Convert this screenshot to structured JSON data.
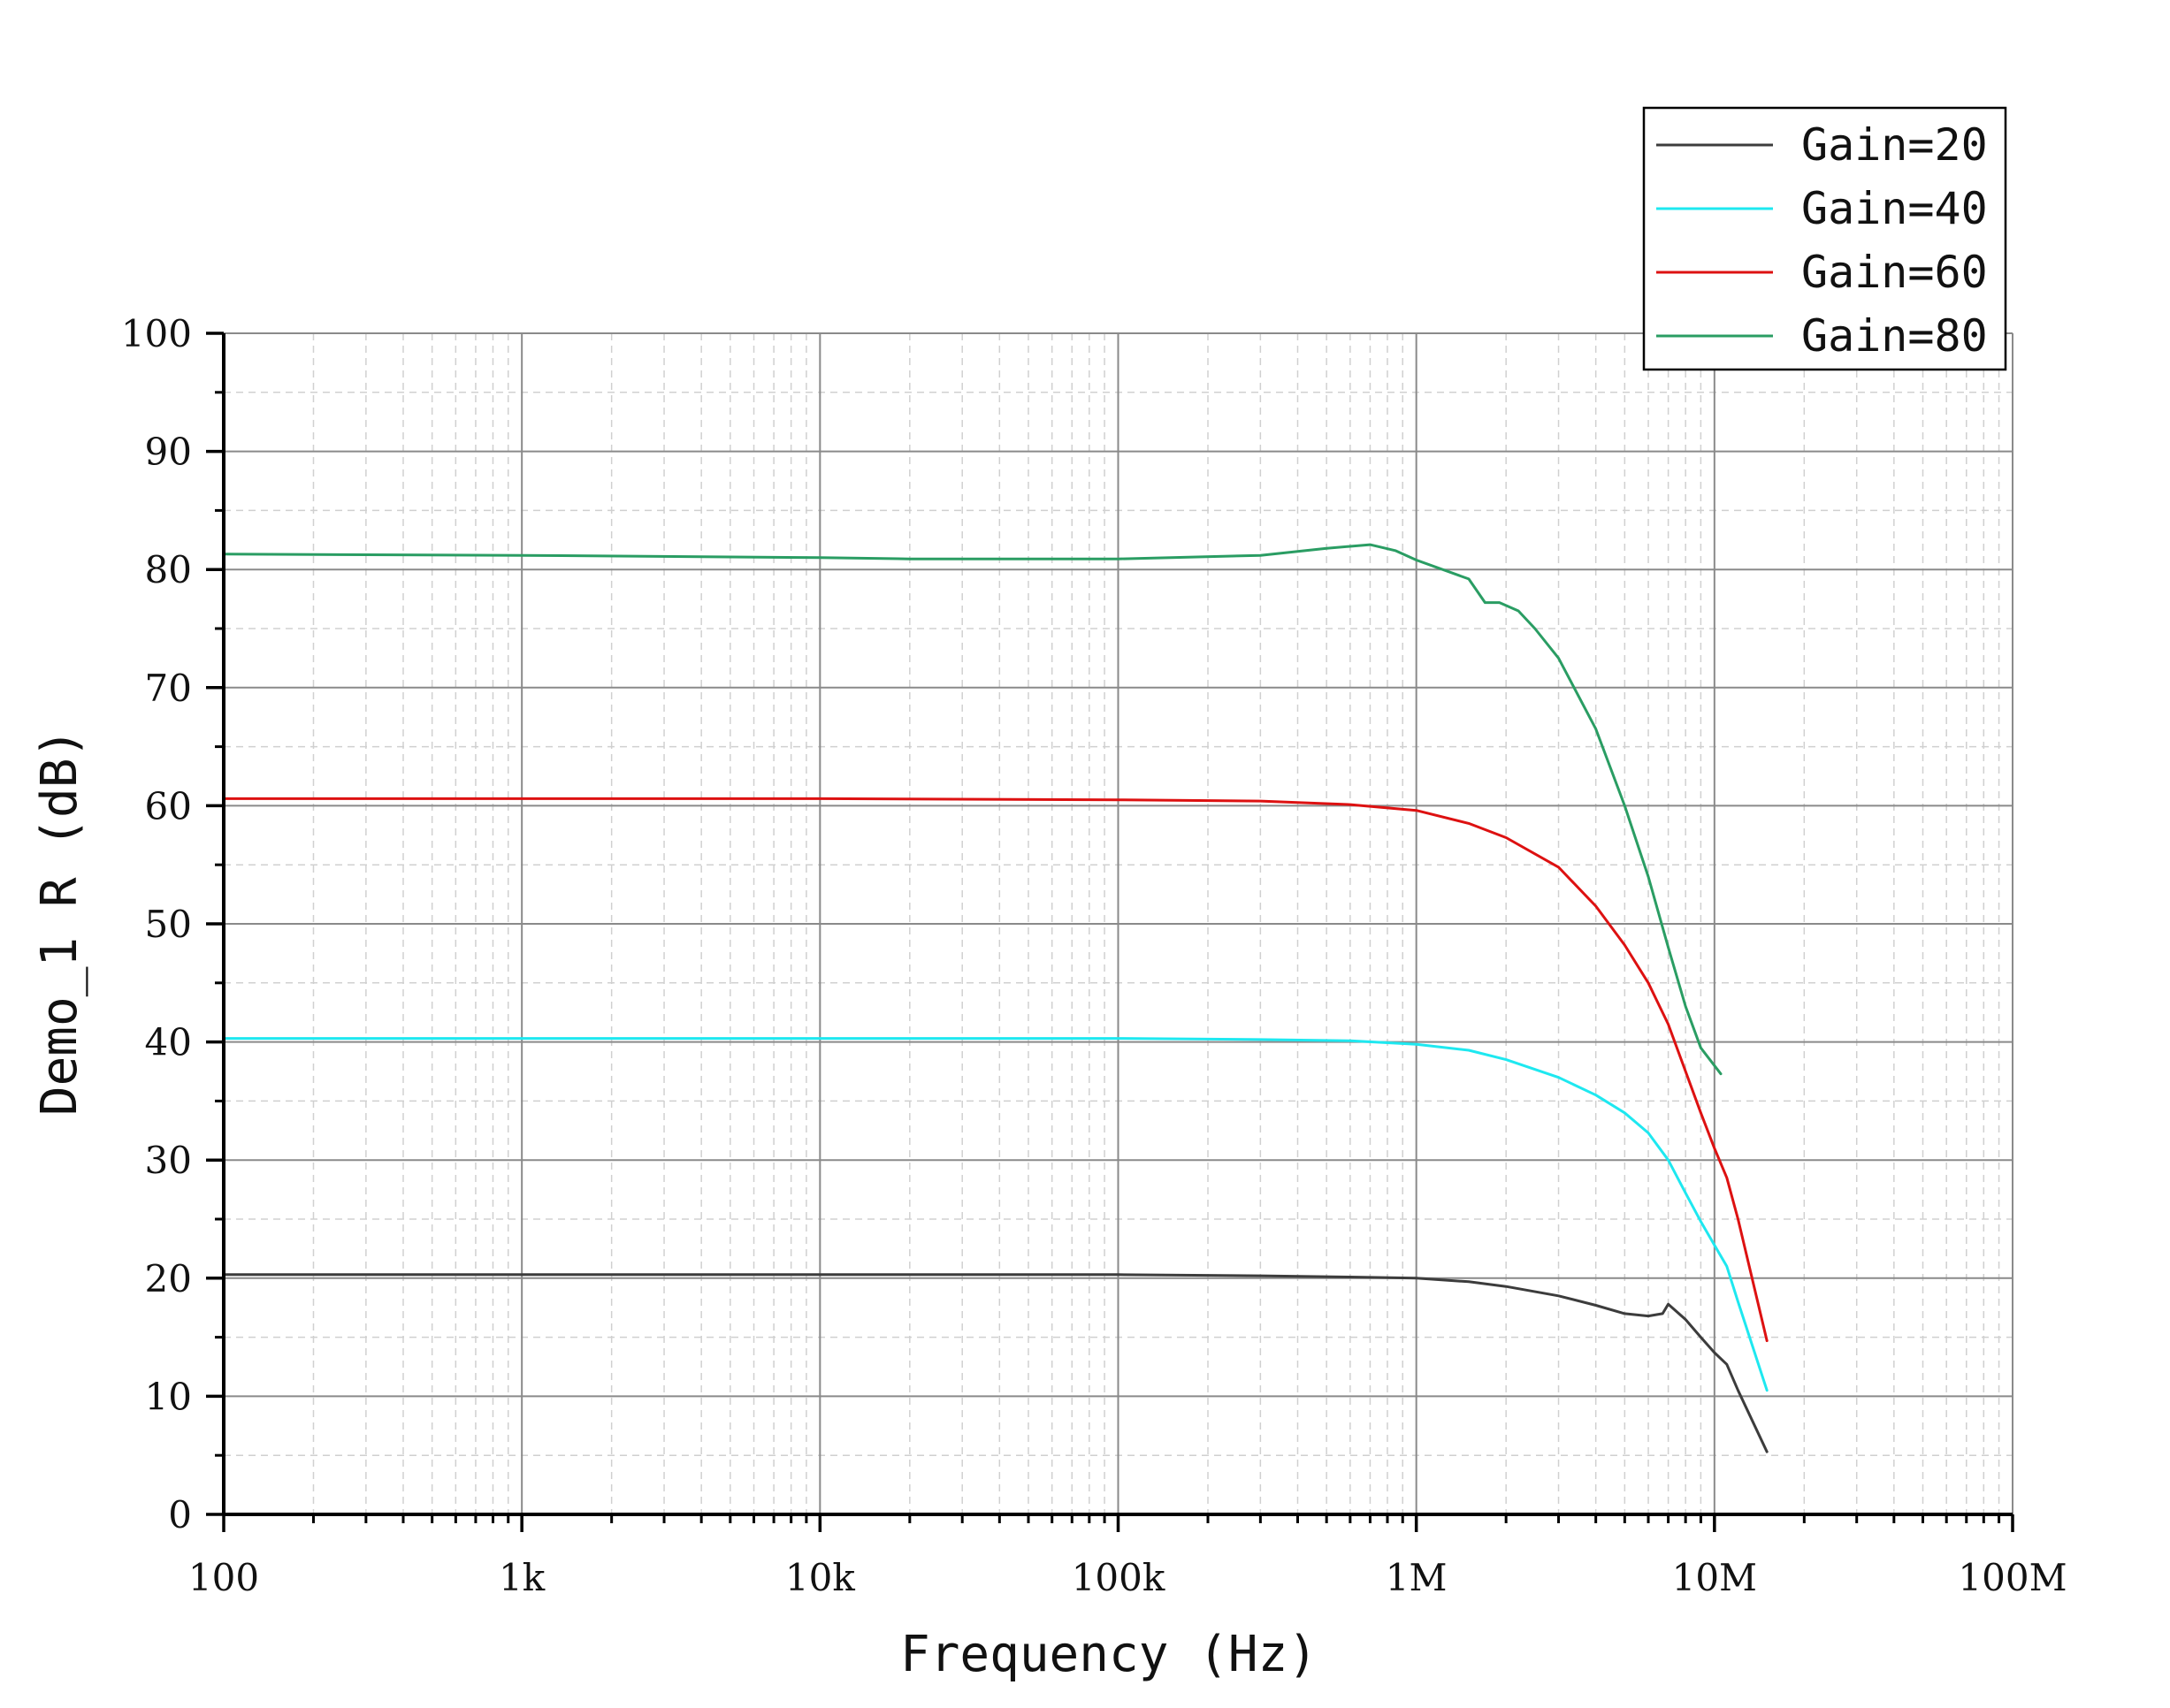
{
  "chart_data": {
    "type": "line",
    "title": "",
    "xlabel": "Frequency (Hz)",
    "ylabel": "Demo_1 R (dB)",
    "xscale": "log",
    "xlim": [
      100,
      100000000
    ],
    "ylim": [
      0,
      100
    ],
    "x_ticks": [
      {
        "value": 100,
        "label": "100"
      },
      {
        "value": 1000,
        "label": "1k"
      },
      {
        "value": 10000,
        "label": "10k"
      },
      {
        "value": 100000,
        "label": "100k"
      },
      {
        "value": 1000000,
        "label": "1M"
      },
      {
        "value": 10000000,
        "label": "10M"
      },
      {
        "value": 100000000,
        "label": "100M"
      }
    ],
    "y_ticks": [
      {
        "value": 0,
        "label": "0"
      },
      {
        "value": 10,
        "label": "10"
      },
      {
        "value": 20,
        "label": "20"
      },
      {
        "value": 30,
        "label": "30"
      },
      {
        "value": 40,
        "label": "40"
      },
      {
        "value": 50,
        "label": "50"
      },
      {
        "value": 60,
        "label": "60"
      },
      {
        "value": 70,
        "label": "70"
      },
      {
        "value": 80,
        "label": "80"
      },
      {
        "value": 90,
        "label": "90"
      },
      {
        "value": 100,
        "label": "100"
      }
    ],
    "grid": true,
    "legend_position": "top-right",
    "series": [
      {
        "name": "Gain=20",
        "color": "#3c3c3c",
        "points": [
          [
            100,
            20.3
          ],
          [
            1000,
            20.3
          ],
          [
            10000,
            20.3
          ],
          [
            100000,
            20.3
          ],
          [
            300000,
            20.2
          ],
          [
            600000,
            20.1
          ],
          [
            1000000,
            20.0
          ],
          [
            1500000,
            19.7
          ],
          [
            2000000,
            19.3
          ],
          [
            3000000,
            18.5
          ],
          [
            4000000,
            17.7
          ],
          [
            5000000,
            17.0
          ],
          [
            6000000,
            16.8
          ],
          [
            6700000,
            17.0
          ],
          [
            7000000,
            17.8
          ],
          [
            8000000,
            16.5
          ],
          [
            9000000,
            15.0
          ],
          [
            10000000,
            13.7
          ],
          [
            11000000,
            12.7
          ],
          [
            12000000,
            10.5
          ],
          [
            15000000,
            5.3
          ]
        ]
      },
      {
        "name": "Gain=40",
        "color": "#1ee8f0",
        "points": [
          [
            100,
            40.3
          ],
          [
            1000,
            40.3
          ],
          [
            10000,
            40.3
          ],
          [
            100000,
            40.3
          ],
          [
            300000,
            40.2
          ],
          [
            600000,
            40.1
          ],
          [
            1000000,
            39.8
          ],
          [
            1500000,
            39.3
          ],
          [
            2000000,
            38.5
          ],
          [
            3000000,
            37.0
          ],
          [
            4000000,
            35.5
          ],
          [
            5000000,
            34.0
          ],
          [
            6000000,
            32.3
          ],
          [
            7000000,
            30.0
          ],
          [
            8000000,
            27.2
          ],
          [
            9000000,
            24.8
          ],
          [
            10000000,
            22.8
          ],
          [
            11000000,
            21.0
          ],
          [
            12000000,
            18.0
          ],
          [
            15000000,
            10.5
          ]
        ]
      },
      {
        "name": "Gain=60",
        "color": "#dd1111",
        "points": [
          [
            100,
            60.6
          ],
          [
            1000,
            60.6
          ],
          [
            10000,
            60.6
          ],
          [
            100000,
            60.5
          ],
          [
            300000,
            60.4
          ],
          [
            600000,
            60.1
          ],
          [
            1000000,
            59.6
          ],
          [
            1500000,
            58.5
          ],
          [
            2000000,
            57.3
          ],
          [
            3000000,
            54.8
          ],
          [
            4000000,
            51.5
          ],
          [
            5000000,
            48.2
          ],
          [
            6000000,
            45.0
          ],
          [
            7000000,
            41.5
          ],
          [
            8000000,
            37.5
          ],
          [
            9000000,
            34.0
          ],
          [
            10000000,
            31.0
          ],
          [
            11000000,
            28.5
          ],
          [
            12000000,
            25.0
          ],
          [
            15000000,
            14.7
          ]
        ]
      },
      {
        "name": "Gain=80",
        "color": "#2a9d63",
        "points": [
          [
            100,
            81.3
          ],
          [
            1000,
            81.2
          ],
          [
            10000,
            81.0
          ],
          [
            20000,
            80.9
          ],
          [
            100000,
            80.9
          ],
          [
            300000,
            81.2
          ],
          [
            500000,
            81.8
          ],
          [
            700000,
            82.1
          ],
          [
            850000,
            81.6
          ],
          [
            1000000,
            80.8
          ],
          [
            1500000,
            79.2
          ],
          [
            1700000,
            77.2
          ],
          [
            1900000,
            77.2
          ],
          [
            2200000,
            76.5
          ],
          [
            2500000,
            75.0
          ],
          [
            3000000,
            72.5
          ],
          [
            4000000,
            66.5
          ],
          [
            5000000,
            60.0
          ],
          [
            6000000,
            54.0
          ],
          [
            7000000,
            48.0
          ],
          [
            8000000,
            43.0
          ],
          [
            9000000,
            39.5
          ],
          [
            10500000,
            37.3
          ]
        ]
      }
    ]
  }
}
